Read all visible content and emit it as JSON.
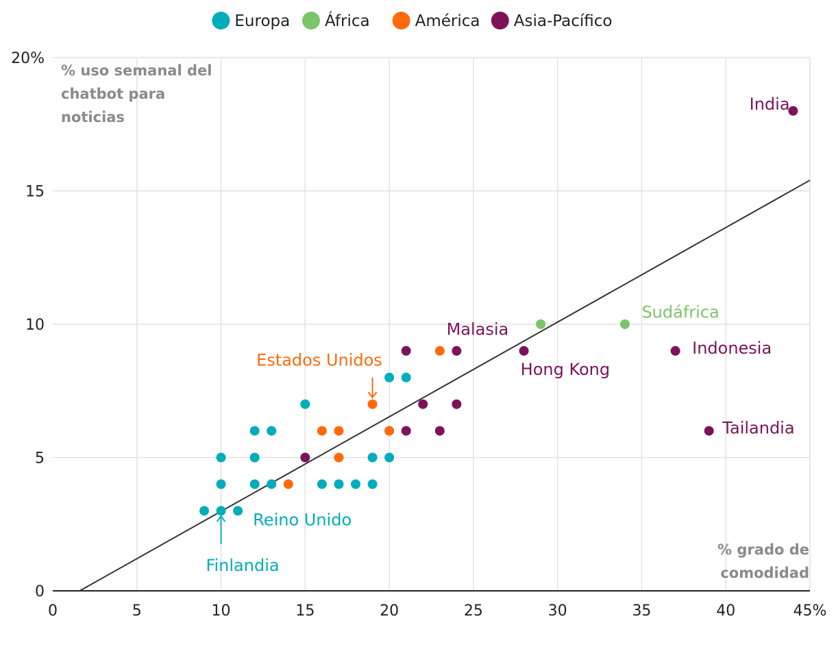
{
  "chart_data": {
    "type": "scatter",
    "ylabel_lines": [
      "% uso semanal del",
      "chatbot para",
      "noticias"
    ],
    "xlabel_lines": [
      "% grado de",
      "comodidad"
    ],
    "xlim": [
      0,
      45
    ],
    "ylim": [
      0,
      20
    ],
    "x_ticks": [
      {
        "value": 0,
        "label": "0"
      },
      {
        "value": 5,
        "label": "5"
      },
      {
        "value": 10,
        "label": "10"
      },
      {
        "value": 15,
        "label": "15"
      },
      {
        "value": 20,
        "label": "20"
      },
      {
        "value": 25,
        "label": "25"
      },
      {
        "value": 30,
        "label": "30"
      },
      {
        "value": 35,
        "label": "35"
      },
      {
        "value": 40,
        "label": "40"
      },
      {
        "value": 45,
        "label": "45%"
      }
    ],
    "y_ticks": [
      {
        "value": 0,
        "label": "0"
      },
      {
        "value": 5,
        "label": "5"
      },
      {
        "value": 10,
        "label": "10"
      },
      {
        "value": 15,
        "label": "15"
      },
      {
        "value": 20,
        "label": "20%"
      }
    ],
    "grid": true,
    "legend_position": "top-center",
    "trendline": {
      "x1": 1.6,
      "y1": 0,
      "x2": 45,
      "y2": 15.4
    },
    "series": [
      {
        "name": "Europa",
        "color": "#00adb9",
        "points": [
          {
            "x": 9,
            "y": 3
          },
          {
            "x": 10,
            "y": 3
          },
          {
            "x": 11,
            "y": 3
          },
          {
            "x": 10,
            "y": 4
          },
          {
            "x": 12,
            "y": 4
          },
          {
            "x": 13,
            "y": 4
          },
          {
            "x": 16,
            "y": 4
          },
          {
            "x": 17,
            "y": 4
          },
          {
            "x": 18,
            "y": 4
          },
          {
            "x": 19,
            "y": 4
          },
          {
            "x": 10,
            "y": 5
          },
          {
            "x": 12,
            "y": 5
          },
          {
            "x": 19,
            "y": 5
          },
          {
            "x": 20,
            "y": 5
          },
          {
            "x": 12,
            "y": 6
          },
          {
            "x": 13,
            "y": 6
          },
          {
            "x": 20,
            "y": 6
          },
          {
            "x": 15,
            "y": 7
          },
          {
            "x": 20,
            "y": 8
          },
          {
            "x": 21,
            "y": 8
          }
        ]
      },
      {
        "name": "África",
        "color": "#7cc46a",
        "points": [
          {
            "x": 29,
            "y": 10
          },
          {
            "x": 34,
            "y": 10
          }
        ]
      },
      {
        "name": "América",
        "color": "#ff6a0d",
        "points": [
          {
            "x": 14,
            "y": 4
          },
          {
            "x": 17,
            "y": 5
          },
          {
            "x": 16,
            "y": 6
          },
          {
            "x": 17,
            "y": 6
          },
          {
            "x": 20,
            "y": 6
          },
          {
            "x": 19,
            "y": 7
          },
          {
            "x": 23,
            "y": 9
          }
        ]
      },
      {
        "name": "Asia-Pacífico",
        "color": "#7c1358",
        "points": [
          {
            "x": 15,
            "y": 5
          },
          {
            "x": 21,
            "y": 6
          },
          {
            "x": 23,
            "y": 6
          },
          {
            "x": 22,
            "y": 7
          },
          {
            "x": 24,
            "y": 7
          },
          {
            "x": 21,
            "y": 9
          },
          {
            "x": 24,
            "y": 9
          },
          {
            "x": 28,
            "y": 9
          },
          {
            "x": 37,
            "y": 9
          },
          {
            "x": 39,
            "y": 6
          },
          {
            "x": 44,
            "y": 18
          }
        ]
      }
    ],
    "annotations": [
      {
        "text": "India",
        "color": "#7c1358",
        "x": 43.8,
        "y": 18.05,
        "anchor": "end"
      },
      {
        "text": "Sudáfrica",
        "color": "#7cc46a",
        "x": 35,
        "y": 10.25,
        "anchor": "start"
      },
      {
        "text": "Indonesia",
        "color": "#7c1358",
        "x": 38,
        "y": 8.9,
        "anchor": "start"
      },
      {
        "text": "Tailandia",
        "color": "#7c1358",
        "x": 39.8,
        "y": 5.9,
        "anchor": "start"
      },
      {
        "text": "Malasia",
        "color": "#7c1358",
        "x": 23.4,
        "y": 9.6,
        "anchor": "start"
      },
      {
        "text": "Hong Kong",
        "color": "#7c1358",
        "x": 27.8,
        "y": 8.1,
        "anchor": "start"
      },
      {
        "text": "Estados Unidos",
        "color": "#ff6a0d",
        "x": 12.1,
        "y": 8.45,
        "anchor": "start"
      },
      {
        "text": "Reino Unido",
        "color": "#00adb9",
        "x": 11.9,
        "y": 2.45,
        "anchor": "start"
      },
      {
        "text": "Finlandia",
        "color": "#00adb9",
        "x": 9.1,
        "y": 0.75,
        "anchor": "start"
      }
    ],
    "arrows": [
      {
        "color": "#ff6a0d",
        "x": 19,
        "y_from": 8.0,
        "y_to": 7.25
      },
      {
        "color": "#00adb9",
        "x": 10,
        "y_from": 1.75,
        "y_to": 2.8
      }
    ]
  }
}
